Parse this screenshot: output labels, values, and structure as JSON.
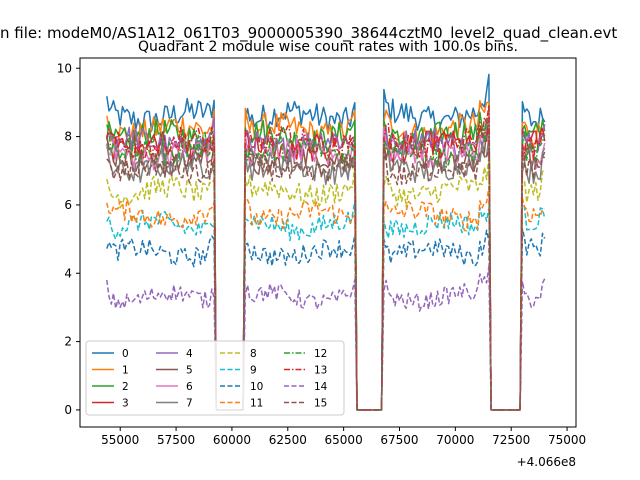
{
  "figure": {
    "suptitle": "n file: modeM0/AS1A12_061T03_9000005390_38644cztM0_level2_quad_clean.evt",
    "offset_label": "+4.066e8"
  },
  "chart_data": {
    "type": "line",
    "title": "Quadrant 2 module wise count rates with 100.0s bins.",
    "xlabel": "",
    "ylabel": "",
    "x_offset": 406600000,
    "xlim": [
      53200,
      75400
    ],
    "ylim": [
      -0.5,
      10.3
    ],
    "x_ticks": [
      55000,
      57500,
      60000,
      62500,
      65000,
      67500,
      70000,
      72500,
      75000
    ],
    "x_tick_labels": [
      "55000",
      "57500",
      "60000",
      "62500",
      "65000",
      "67500",
      "70000",
      "72500",
      "75000"
    ],
    "y_ticks": [
      0,
      2,
      4,
      6,
      8,
      10
    ],
    "y_tick_labels": [
      "0",
      "2",
      "4",
      "6",
      "8",
      "10"
    ],
    "bin_seconds": 100,
    "good_intervals": [
      [
        54400,
        59200
      ],
      [
        60600,
        65500
      ],
      [
        66800,
        71500
      ],
      [
        73000,
        74000
      ]
    ],
    "legend": {
      "location": "lower-left",
      "columns": 4
    },
    "series": [
      {
        "name": "0",
        "color": "#1f77b4",
        "style": "solid",
        "level": 8.6
      },
      {
        "name": "1",
        "color": "#ff7f0e",
        "style": "solid",
        "level": 8.2
      },
      {
        "name": "2",
        "color": "#2ca02c",
        "style": "solid",
        "level": 8.0
      },
      {
        "name": "3",
        "color": "#d62728",
        "style": "solid",
        "level": 7.7
      },
      {
        "name": "4",
        "color": "#9467bd",
        "style": "solid",
        "level": 7.8
      },
      {
        "name": "5",
        "color": "#8c564b",
        "style": "solid",
        "level": 7.3
      },
      {
        "name": "6",
        "color": "#e377c2",
        "style": "solid",
        "level": 7.5
      },
      {
        "name": "7",
        "color": "#7f7f7f",
        "style": "solid",
        "level": 7.1
      },
      {
        "name": "8",
        "color": "#bcbd22",
        "style": "dashed",
        "level": 6.4
      },
      {
        "name": "9",
        "color": "#17becf",
        "style": "dashed",
        "level": 5.4
      },
      {
        "name": "10",
        "color": "#1f77b4",
        "style": "dashed",
        "level": 4.6
      },
      {
        "name": "11",
        "color": "#ff7f0e",
        "style": "dashed",
        "level": 5.7
      },
      {
        "name": "12",
        "color": "#2ca02c",
        "style": "dashdot",
        "level": 7.6
      },
      {
        "name": "13",
        "color": "#d62728",
        "style": "dashdot",
        "level": 7.8
      },
      {
        "name": "14",
        "color": "#9467bd",
        "style": "dashed",
        "level": 3.3
      },
      {
        "name": "15",
        "color": "#8c564b",
        "style": "dashed",
        "level": 7.0
      }
    ]
  }
}
